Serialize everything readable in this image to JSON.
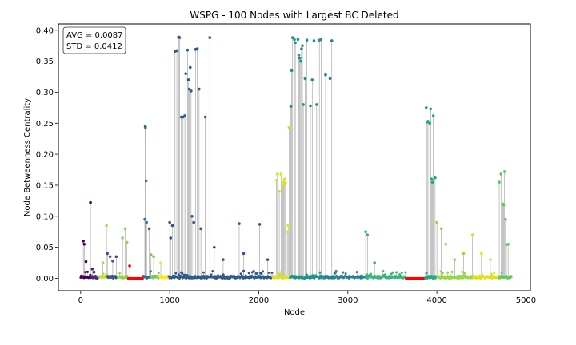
{
  "chart_data": {
    "type": "scatter",
    "title": "WSPG - 100 Nodes with Largest BC Deleted",
    "xlabel": "Node",
    "ylabel": "Node Betweenness Centrality",
    "xlim": [
      -250,
      5050
    ],
    "ylim": [
      -0.02,
      0.41
    ],
    "xticks": [
      0,
      1000,
      2000,
      3000,
      4000,
      5000
    ],
    "yticks": [
      0.0,
      0.05,
      0.1,
      0.15,
      0.2,
      0.25,
      0.3,
      0.35,
      0.4
    ],
    "ytick_labels": [
      "0.00",
      "0.05",
      "0.10",
      "0.15",
      "0.20",
      "0.25",
      "0.30",
      "0.35",
      "0.40"
    ],
    "annotation": {
      "avg": "AVG = 0.0087",
      "std": "STD = 0.0412"
    },
    "stem_color": "#9e9e9e",
    "segments": [
      {
        "start": 0,
        "end": 120,
        "color": "#440154"
      },
      {
        "start": 120,
        "end": 200,
        "color": "#472c7a"
      },
      {
        "start": 200,
        "end": 300,
        "color": "#b5de2b"
      },
      {
        "start": 300,
        "end": 420,
        "color": "#3b528b"
      },
      {
        "start": 420,
        "end": 530,
        "color": "#8fd744"
      },
      {
        "start": 530,
        "end": 700,
        "color": "#ff0000"
      },
      {
        "start": 700,
        "end": 790,
        "color": "#2c728e"
      },
      {
        "start": 790,
        "end": 880,
        "color": "#6ece58"
      },
      {
        "start": 880,
        "end": 990,
        "color": "#fde725"
      },
      {
        "start": 990,
        "end": 2150,
        "color": "#31588d"
      },
      {
        "start": 2150,
        "end": 2350,
        "color": "#dde318"
      },
      {
        "start": 2350,
        "end": 2750,
        "color": "#21918c"
      },
      {
        "start": 2750,
        "end": 3200,
        "color": "#26828e"
      },
      {
        "start": 3200,
        "end": 3650,
        "color": "#35b779"
      },
      {
        "start": 3650,
        "end": 3870,
        "color": "#ff0000"
      },
      {
        "start": 3870,
        "end": 4000,
        "color": "#22a884"
      },
      {
        "start": 4000,
        "end": 4400,
        "color": "#95d840"
      },
      {
        "start": 4400,
        "end": 4700,
        "color": "#dde318"
      },
      {
        "start": 4700,
        "end": 4840,
        "color": "#5ec962"
      }
    ],
    "points": [
      [
        30,
        0.06
      ],
      [
        40,
        0.055
      ],
      [
        60,
        0.027
      ],
      [
        110,
        0.122
      ],
      [
        130,
        0.015
      ],
      [
        150,
        0.01
      ],
      [
        250,
        0.025
      ],
      [
        290,
        0.085
      ],
      [
        300,
        0.04
      ],
      [
        330,
        0.035
      ],
      [
        360,
        0.028
      ],
      [
        400,
        0.035
      ],
      [
        470,
        0.065
      ],
      [
        500,
        0.08
      ],
      [
        520,
        0.058
      ],
      [
        550,
        0.02
      ],
      [
        720,
        0.095
      ],
      [
        725,
        0.245
      ],
      [
        728,
        0.243
      ],
      [
        735,
        0.157
      ],
      [
        740,
        0.09
      ],
      [
        770,
        0.08
      ],
      [
        790,
        0.038
      ],
      [
        820,
        0.035
      ],
      [
        900,
        0.025
      ],
      [
        1000,
        0.09
      ],
      [
        1010,
        0.065
      ],
      [
        1030,
        0.085
      ],
      [
        1060,
        0.366
      ],
      [
        1080,
        0.367
      ],
      [
        1100,
        0.389
      ],
      [
        1110,
        0.388
      ],
      [
        1130,
        0.26
      ],
      [
        1150,
        0.26
      ],
      [
        1170,
        0.262
      ],
      [
        1180,
        0.33
      ],
      [
        1200,
        0.368
      ],
      [
        1210,
        0.32
      ],
      [
        1220,
        0.305
      ],
      [
        1230,
        0.34
      ],
      [
        1240,
        0.302
      ],
      [
        1250,
        0.1
      ],
      [
        1270,
        0.09
      ],
      [
        1290,
        0.369
      ],
      [
        1310,
        0.37
      ],
      [
        1330,
        0.305
      ],
      [
        1350,
        0.08
      ],
      [
        1400,
        0.26
      ],
      [
        1450,
        0.388
      ],
      [
        1500,
        0.05
      ],
      [
        1600,
        0.03
      ],
      [
        1780,
        0.088
      ],
      [
        1830,
        0.04
      ],
      [
        2010,
        0.087
      ],
      [
        2100,
        0.03
      ],
      [
        2200,
        0.158
      ],
      [
        2210,
        0.168
      ],
      [
        2230,
        0.14
      ],
      [
        2250,
        0.168
      ],
      [
        2270,
        0.15
      ],
      [
        2280,
        0.155
      ],
      [
        2290,
        0.16
      ],
      [
        2300,
        0.154
      ],
      [
        2320,
        0.075
      ],
      [
        2330,
        0.085
      ],
      [
        2340,
        0.243
      ],
      [
        2360,
        0.277
      ],
      [
        2370,
        0.335
      ],
      [
        2380,
        0.388
      ],
      [
        2400,
        0.385
      ],
      [
        2410,
        0.38
      ],
      [
        2440,
        0.385
      ],
      [
        2450,
        0.36
      ],
      [
        2460,
        0.355
      ],
      [
        2470,
        0.35
      ],
      [
        2480,
        0.37
      ],
      [
        2490,
        0.375
      ],
      [
        2500,
        0.28
      ],
      [
        2520,
        0.322
      ],
      [
        2540,
        0.384
      ],
      [
        2580,
        0.278
      ],
      [
        2600,
        0.32
      ],
      [
        2620,
        0.383
      ],
      [
        2650,
        0.28
      ],
      [
        2680,
        0.384
      ],
      [
        2700,
        0.385
      ],
      [
        2750,
        0.328
      ],
      [
        2800,
        0.322
      ],
      [
        2820,
        0.383
      ],
      [
        3200,
        0.075
      ],
      [
        3220,
        0.07
      ],
      [
        3300,
        0.025
      ],
      [
        3880,
        0.275
      ],
      [
        3890,
        0.252
      ],
      [
        3900,
        0.253
      ],
      [
        3920,
        0.25
      ],
      [
        3930,
        0.273
      ],
      [
        3940,
        0.16
      ],
      [
        3950,
        0.155
      ],
      [
        3960,
        0.262
      ],
      [
        3980,
        0.162
      ],
      [
        4000,
        0.09
      ],
      [
        4050,
        0.08
      ],
      [
        4100,
        0.055
      ],
      [
        4200,
        0.03
      ],
      [
        4300,
        0.04
      ],
      [
        4400,
        0.07
      ],
      [
        4500,
        0.04
      ],
      [
        4600,
        0.03
      ],
      [
        4700,
        0.155
      ],
      [
        4720,
        0.168
      ],
      [
        4740,
        0.12
      ],
      [
        4750,
        0.118
      ],
      [
        4760,
        0.172
      ],
      [
        4770,
        0.095
      ],
      [
        4780,
        0.054
      ],
      [
        4800,
        0.055
      ]
    ]
  }
}
